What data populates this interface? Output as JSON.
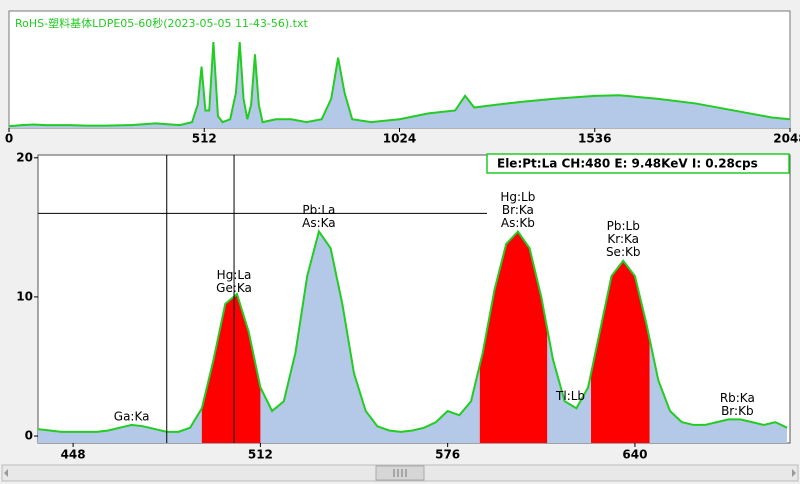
{
  "chart_data": [
    {
      "type": "line",
      "title": "RoHS-塑料基体LDPE05-60秒(2023-05-05 11-43-56).txt",
      "x": [
        0,
        32,
        64,
        96,
        128,
        160,
        200,
        256,
        320,
        384,
        448,
        480,
        495,
        505,
        515,
        525,
        536,
        548,
        560,
        580,
        595,
        605,
        615,
        625,
        635,
        645,
        655,
        665,
        700,
        740,
        780,
        820,
        845,
        863,
        880,
        900,
        950,
        1024,
        1100,
        1170,
        1196,
        1220,
        1280,
        1350,
        1430,
        1536,
        1600,
        1700,
        1800,
        1900,
        2000,
        2048
      ],
      "series": [
        {
          "color": "#22cc22",
          "fill": "#b4c8e8",
          "values": [
            0.3,
            0.5,
            0.6,
            0.5,
            0.5,
            0.5,
            0.4,
            0.4,
            0.5,
            0.8,
            0.5,
            1.0,
            4,
            10.5,
            3,
            3,
            14.7,
            2,
            1,
            1.5,
            6,
            14.7,
            5,
            1.5,
            4,
            12.6,
            4,
            1,
            1.5,
            1.5,
            1,
            1.5,
            5,
            12,
            6,
            1.5,
            1,
            1.5,
            2.5,
            3,
            5.5,
            3.5,
            4,
            4.5,
            5,
            5.5,
            5.6,
            5,
            4.2,
            3,
            1.8,
            1.5
          ]
        }
      ],
      "xlim": [
        0,
        2048
      ],
      "xticks": [
        0,
        512,
        1024,
        1536,
        2048
      ],
      "ylim": [
        0,
        20
      ]
    },
    {
      "type": "line",
      "x": [
        436,
        440,
        444,
        448,
        452,
        456,
        460,
        464,
        468,
        472,
        476,
        480,
        484,
        488,
        492,
        496,
        500,
        504,
        508,
        512,
        516,
        520,
        524,
        528,
        532,
        536,
        540,
        544,
        548,
        552,
        556,
        560,
        564,
        568,
        572,
        576,
        580,
        584,
        588,
        592,
        596,
        600,
        604,
        608,
        612,
        616,
        620,
        624,
        628,
        632,
        636,
        640,
        644,
        648,
        652,
        656,
        660,
        664,
        668,
        672,
        676,
        680,
        684,
        688,
        692
      ],
      "series": [
        {
          "color": "#22cc22",
          "fill": "#b4c8e8",
          "values": [
            0.5,
            0.4,
            0.3,
            0.3,
            0.3,
            0.3,
            0.4,
            0.6,
            0.8,
            0.7,
            0.5,
            0.3,
            0.3,
            0.6,
            2,
            5.5,
            9.5,
            10.2,
            7.5,
            3.5,
            1.8,
            2.5,
            6,
            11.5,
            14.7,
            13.5,
            9.5,
            4.5,
            1.8,
            0.7,
            0.4,
            0.3,
            0.4,
            0.6,
            1,
            1.8,
            1.5,
            2.5,
            6,
            10.5,
            13.8,
            14.7,
            13.5,
            10,
            5.5,
            2.5,
            2,
            3.5,
            7.5,
            11.5,
            12.6,
            11.5,
            8,
            4,
            1.8,
            1,
            0.8,
            0.8,
            1,
            1.2,
            1.2,
            1,
            0.8,
            1,
            0.6
          ]
        }
      ],
      "regions": [
        [
          492,
          512
        ],
        [
          587,
          610
        ],
        [
          625,
          645
        ]
      ],
      "region_color": "#ff0000",
      "xlim": [
        436,
        693
      ],
      "xticks": [
        448,
        512,
        576,
        640
      ],
      "ylim": [
        -0.5,
        20.2
      ],
      "yticks": [
        0,
        10,
        20
      ],
      "cursor": {
        "text": "Ele:Pt:La CH:480  E: 9.48KeV I:  0.28cps",
        "x": [
          480,
          503
        ],
        "y": 16
      },
      "annotations": [
        {
          "lines": [
            "Ga:Ka"
          ],
          "x": 468
        },
        {
          "lines": [
            "Hg:La",
            "Ge:Ka"
          ],
          "x": 503
        },
        {
          "lines": [
            "Pb:La",
            "As:Ka"
          ],
          "x": 532
        },
        {
          "lines": [
            "Hg:Lb",
            "Br:Ka",
            "As:Kb"
          ],
          "x": 600
        },
        {
          "lines": [
            "Tl:Lb"
          ],
          "x": 618
        },
        {
          "lines": [
            "Pb:Lb",
            "Kr:Ka",
            "Se:Kb"
          ],
          "x": 636
        },
        {
          "lines": [
            "Rb:Ka",
            "Br:Kb"
          ],
          "x": 675
        }
      ]
    }
  ]
}
